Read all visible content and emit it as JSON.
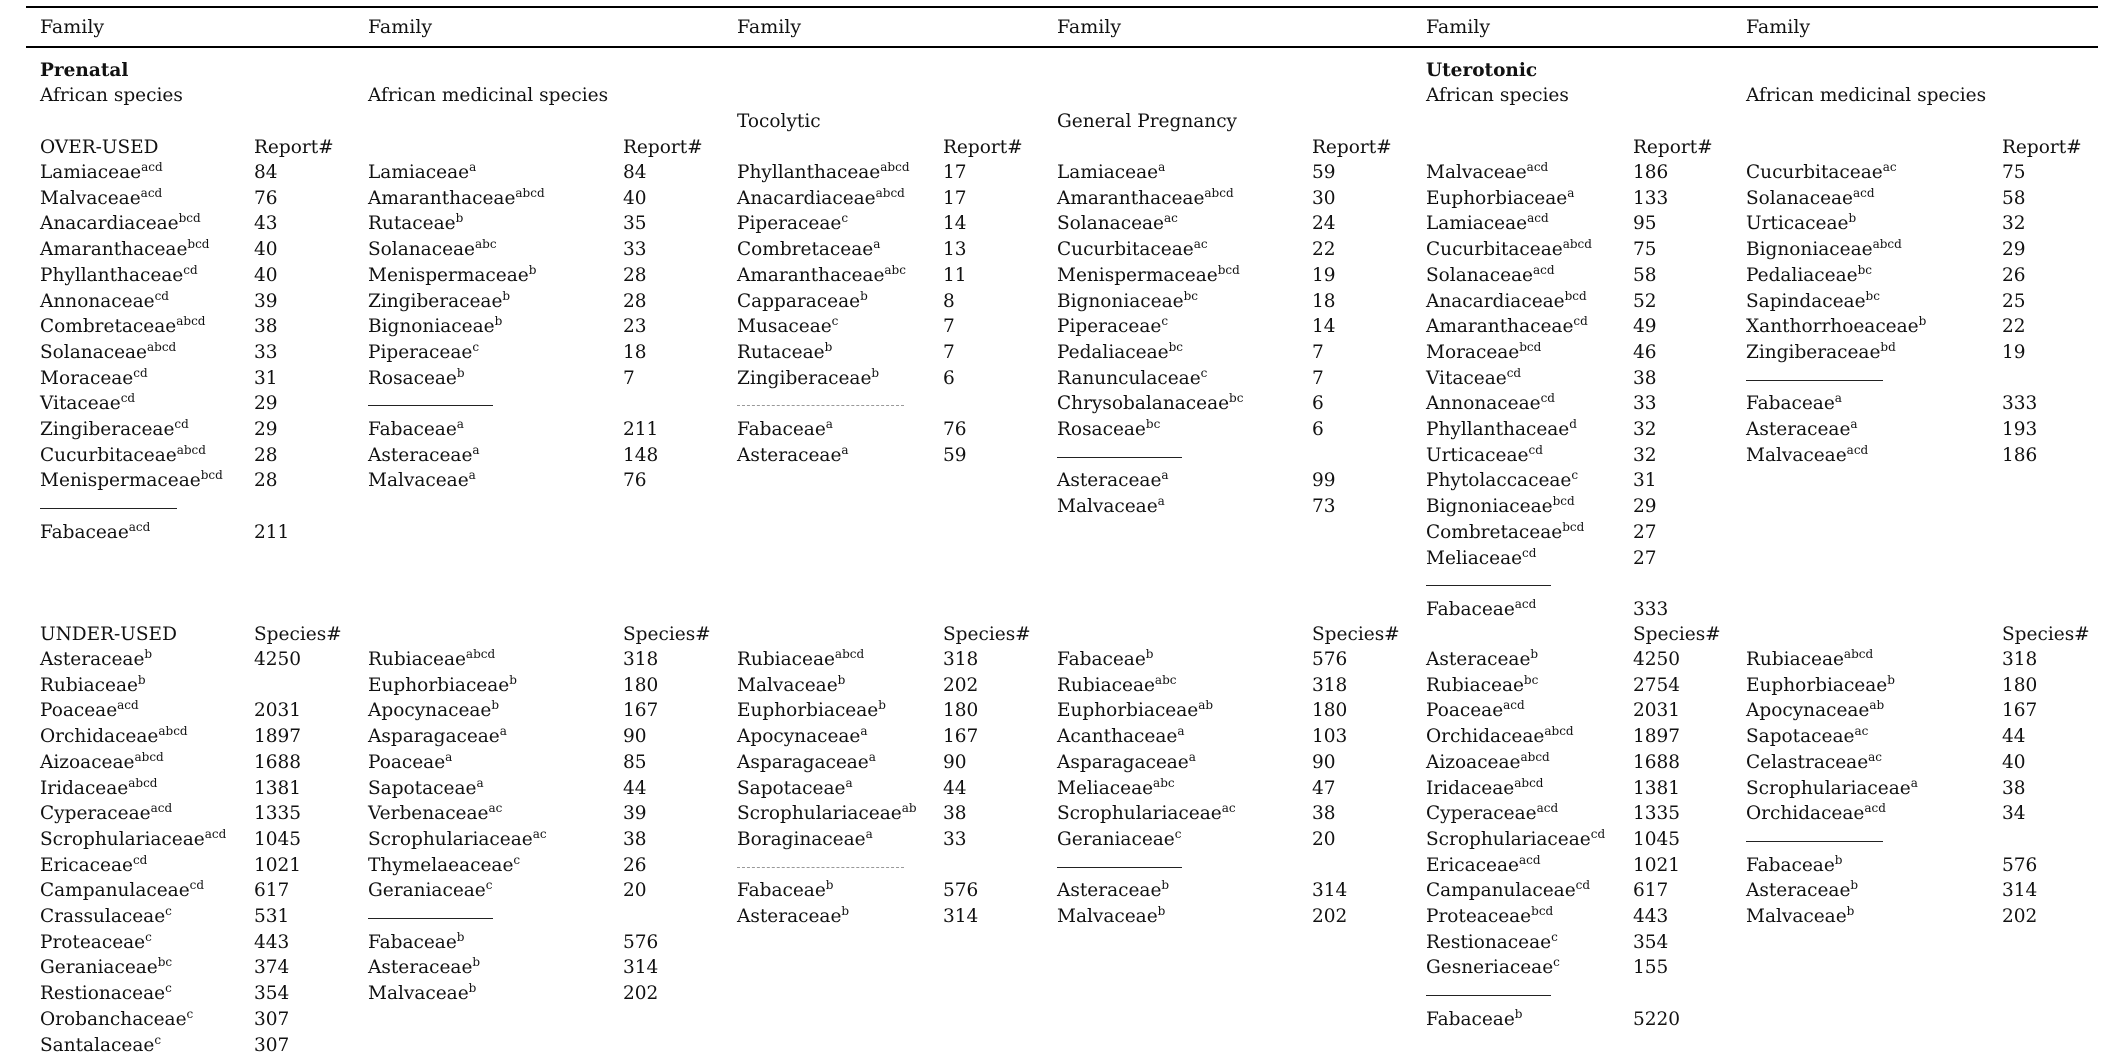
{
  "header": {
    "cols": [
      "Family",
      "Family",
      "Family",
      "Family",
      "Family",
      "Family"
    ]
  },
  "sections": {
    "prenatal": "Prenatal",
    "uterotonic": "Uterotonic"
  },
  "subheads": {
    "african_species": "African species",
    "african_medicinal": "African medicinal species",
    "tocolytic": "Tocolytic",
    "general_pregnancy": "General Pregnancy",
    "african_species_2": "African species",
    "african_medicinal_2": "African medicinal species"
  },
  "labels": {
    "over_used": "OVER-USED",
    "under_used": "UNDER-USED",
    "report": "Report#",
    "species": "Species#"
  },
  "groups": [
    {
      "id": "pa-over",
      "rows": [
        {
          "n": "Lamiaceae",
          "s": "acd",
          "v": "84"
        },
        {
          "n": "Malvaceae",
          "s": "acd",
          "v": "76"
        },
        {
          "n": "Anacardiaceae",
          "s": "bcd",
          "v": "43"
        },
        {
          "n": "Amaranthaceae",
          "s": "bcd",
          "v": "40"
        },
        {
          "n": "Phyllanthaceae",
          "s": "cd",
          "v": "40"
        },
        {
          "n": "Annonaceae",
          "s": "cd",
          "v": "39"
        },
        {
          "n": "Combretaceae",
          "s": "abcd",
          "v": "38"
        },
        {
          "n": "Solanaceae",
          "s": "abcd",
          "v": "33"
        },
        {
          "n": "Moraceae",
          "s": "cd",
          "v": "31"
        },
        {
          "n": "Vitaceae",
          "s": "cd",
          "v": "29"
        },
        {
          "n": "Zingiberaceae",
          "s": "cd",
          "v": "29"
        },
        {
          "n": "Cucurbitaceae",
          "s": "abcd",
          "v": "28"
        },
        {
          "n": "Menispermaceae",
          "s": "bcd",
          "v": "28"
        },
        {
          "n": "Fabaceae",
          "s": "acd",
          "v": "211"
        }
      ]
    },
    {
      "id": "pm-over",
      "rows": [
        {
          "n": "Lamiaceae",
          "s": "a",
          "v": "84"
        },
        {
          "n": "Amaranthaceae",
          "s": "abcd",
          "v": "40"
        },
        {
          "n": "Rutaceae",
          "s": "b",
          "v": "35"
        },
        {
          "n": "Solanaceae",
          "s": "abc",
          "v": "33"
        },
        {
          "n": "Menispermaceae",
          "s": "b",
          "v": "28"
        },
        {
          "n": "Zingiberaceae",
          "s": "b",
          "v": "28"
        },
        {
          "n": "Bignoniaceae",
          "s": "b",
          "v": "23"
        },
        {
          "n": "Piperaceae",
          "s": "c",
          "v": "18"
        },
        {
          "n": "Rosaceae",
          "s": "b",
          "v": "7"
        },
        {
          "n": "Fabaceae",
          "s": "a",
          "v": "211"
        },
        {
          "n": "Asteraceae",
          "s": "a",
          "v": "148"
        },
        {
          "n": "Malvaceae",
          "s": "a",
          "v": "76"
        }
      ]
    },
    {
      "id": "toc-over",
      "rows": [
        {
          "n": "Phyllanthaceae",
          "s": "abcd",
          "v": "17"
        },
        {
          "n": "Anacardiaceae",
          "s": "abcd",
          "v": "17"
        },
        {
          "n": "Piperaceae",
          "s": "c",
          "v": "14"
        },
        {
          "n": "Combretaceae",
          "s": "a",
          "v": "13"
        },
        {
          "n": "Amaranthaceae",
          "s": "abc",
          "v": "11"
        },
        {
          "n": "Capparaceae",
          "s": "b",
          "v": "8"
        },
        {
          "n": "Musaceae",
          "s": "c",
          "v": "7"
        },
        {
          "n": "Rutaceae",
          "s": "b",
          "v": "7"
        },
        {
          "n": "Zingiberaceae",
          "s": "b",
          "v": "6"
        },
        {
          "n": "Fabaceae",
          "s": "a",
          "v": "76"
        },
        {
          "n": "Asteraceae",
          "s": "a",
          "v": "59"
        }
      ]
    },
    {
      "id": "gp-over",
      "rows": [
        {
          "n": "Lamiaceae",
          "s": "a",
          "v": "59"
        },
        {
          "n": "Amaranthaceae",
          "s": "abcd",
          "v": "30"
        },
        {
          "n": "Solanaceae",
          "s": "ac",
          "v": "24"
        },
        {
          "n": "Cucurbitaceae",
          "s": "ac",
          "v": "22"
        },
        {
          "n": "Menispermaceae",
          "s": "bcd",
          "v": "19"
        },
        {
          "n": "Bignoniaceae",
          "s": "bc",
          "v": "18"
        },
        {
          "n": "Piperaceae",
          "s": "c",
          "v": "14"
        },
        {
          "n": "Pedaliaceae",
          "s": "bc",
          "v": "7"
        },
        {
          "n": "Ranunculaceae",
          "s": "c",
          "v": "7"
        },
        {
          "n": "Chrysobalanaceae",
          "s": "bc",
          "v": "6"
        },
        {
          "n": "Rosaceae",
          "s": "bc",
          "v": "6"
        },
        {
          "n": "Asteraceae",
          "s": "a",
          "v": "99"
        },
        {
          "n": "Malvaceae",
          "s": "a",
          "v": "73"
        }
      ]
    },
    {
      "id": "ua-over",
      "rows": [
        {
          "n": "Malvaceae",
          "s": "acd",
          "v": "186"
        },
        {
          "n": "Euphorbiaceae",
          "s": "a",
          "v": "133"
        },
        {
          "n": "Lamiaceae",
          "s": "acd",
          "v": "95"
        },
        {
          "n": "Cucurbitaceae",
          "s": "abcd",
          "v": "75"
        },
        {
          "n": "Solanaceae",
          "s": "acd",
          "v": "58"
        },
        {
          "n": "Anacardiaceae",
          "s": "bcd",
          "v": "52"
        },
        {
          "n": "Amaranthaceae",
          "s": "cd",
          "v": "49"
        },
        {
          "n": "Moraceae",
          "s": "bcd",
          "v": "46"
        },
        {
          "n": "Vitaceae",
          "s": "cd",
          "v": "38"
        },
        {
          "n": "Annonaceae",
          "s": "cd",
          "v": "33"
        },
        {
          "n": "Phyllanthaceae",
          "s": "d",
          "v": "32"
        },
        {
          "n": "Urticaceae",
          "s": "cd",
          "v": "32"
        },
        {
          "n": "Phytolaccaceae",
          "s": "c",
          "v": "31"
        },
        {
          "n": "Bignoniaceae",
          "s": "bcd",
          "v": "29"
        },
        {
          "n": "Combretaceae",
          "s": "bcd",
          "v": "27"
        },
        {
          "n": "Meliaceae",
          "s": "cd",
          "v": "27"
        },
        {
          "n": "Fabaceae",
          "s": "acd",
          "v": "333"
        }
      ]
    },
    {
      "id": "um-over",
      "rows": [
        {
          "n": "Cucurbitaceae",
          "s": "ac",
          "v": "75"
        },
        {
          "n": "Solanaceae",
          "s": "acd",
          "v": "58"
        },
        {
          "n": "Urticaceae",
          "s": "b",
          "v": "32"
        },
        {
          "n": "Bignoniaceae",
          "s": "abcd",
          "v": "29"
        },
        {
          "n": "Pedaliaceae",
          "s": "bc",
          "v": "26"
        },
        {
          "n": "Sapindaceae",
          "s": "bc",
          "v": "25"
        },
        {
          "n": "Xanthorrhoeaceae",
          "s": "b",
          "v": "22"
        },
        {
          "n": "Zingiberaceae",
          "s": "bd",
          "v": "19"
        },
        {
          "n": "Fabaceae",
          "s": "a",
          "v": "333"
        },
        {
          "n": "Asteraceae",
          "s": "a",
          "v": "193"
        },
        {
          "n": "Malvaceae",
          "s": "acd",
          "v": "186"
        }
      ]
    },
    {
      "id": "pa-under",
      "rows": [
        {
          "n": "Asteraceae",
          "s": "b",
          "v": "4250"
        },
        {
          "n": "Rubiaceae",
          "s": "b",
          "v": ""
        },
        {
          "n": "Poaceae",
          "s": "acd",
          "v": "2031"
        },
        {
          "n": "Orchidaceae",
          "s": "abcd",
          "v": "1897"
        },
        {
          "n": "Aizoaceae",
          "s": "abcd",
          "v": "1688"
        },
        {
          "n": "Iridaceae",
          "s": "abcd",
          "v": "1381"
        },
        {
          "n": "Cyperaceae",
          "s": "acd",
          "v": "1335"
        },
        {
          "n": "Scrophulariaceae",
          "s": "acd",
          "v": "1045"
        },
        {
          "n": "Ericaceae",
          "s": "cd",
          "v": "1021"
        },
        {
          "n": "Campanulaceae",
          "s": "cd",
          "v": "617"
        },
        {
          "n": "Crassulaceae",
          "s": "c",
          "v": "531"
        },
        {
          "n": "Proteaceae",
          "s": "c",
          "v": "443"
        },
        {
          "n": "Geraniaceae",
          "s": "bc",
          "v": "374"
        },
        {
          "n": "Restionaceae",
          "s": "c",
          "v": "354"
        },
        {
          "n": "Orobanchaceae",
          "s": "c",
          "v": "307"
        },
        {
          "n": "Santalaceae",
          "s": "c",
          "v": "307"
        }
      ]
    },
    {
      "id": "pm-under",
      "rows": [
        {
          "n": "Rubiaceae",
          "s": "abcd",
          "v": "318"
        },
        {
          "n": "Euphorbiaceae",
          "s": "b",
          "v": "180"
        },
        {
          "n": "Apocynaceae",
          "s": "b",
          "v": "167"
        },
        {
          "n": "Asparagaceae",
          "s": "a",
          "v": "90"
        },
        {
          "n": "Poaceae",
          "s": "a",
          "v": "85"
        },
        {
          "n": "Sapotaceae",
          "s": "a",
          "v": "44"
        },
        {
          "n": "Verbenaceae",
          "s": "ac",
          "v": "39"
        },
        {
          "n": "Scrophulariaceae",
          "s": "ac",
          "v": "38"
        },
        {
          "n": "Thymelaeaceae",
          "s": "c",
          "v": "26"
        },
        {
          "n": "Geraniaceae",
          "s": "c",
          "v": "20"
        },
        {
          "n": "Fabaceae",
          "s": "b",
          "v": "576"
        },
        {
          "n": "Asteraceae",
          "s": "b",
          "v": "314"
        },
        {
          "n": "Malvaceae",
          "s": "b",
          "v": "202"
        }
      ]
    },
    {
      "id": "toc-under",
      "rows": [
        {
          "n": "Rubiaceae",
          "s": "abcd",
          "v": "318"
        },
        {
          "n": "Malvaceae",
          "s": "b",
          "v": "202"
        },
        {
          "n": "Euphorbiaceae",
          "s": "b",
          "v": "180"
        },
        {
          "n": "Apocynaceae",
          "s": "a",
          "v": "167"
        },
        {
          "n": "Asparagaceae",
          "s": "a",
          "v": "90"
        },
        {
          "n": "Sapotaceae",
          "s": "a",
          "v": "44"
        },
        {
          "n": "Scrophulariaceae",
          "s": "ab",
          "v": "38"
        },
        {
          "n": "Boraginaceae",
          "s": "a",
          "v": "33"
        },
        {
          "n": "Fabaceae",
          "s": "b",
          "v": "576"
        },
        {
          "n": "Asteraceae",
          "s": "b",
          "v": "314"
        }
      ]
    },
    {
      "id": "gp-under",
      "rows": [
        {
          "n": "Fabaceae",
          "s": "b",
          "v": "576"
        },
        {
          "n": "Rubiaceae",
          "s": "abc",
          "v": "318"
        },
        {
          "n": "Euphorbiaceae",
          "s": "ab",
          "v": "180"
        },
        {
          "n": "Acanthaceae",
          "s": "a",
          "v": "103"
        },
        {
          "n": "Asparagaceae",
          "s": "a",
          "v": "90"
        },
        {
          "n": "Meliaceae",
          "s": "abc",
          "v": "47"
        },
        {
          "n": "Scrophulariaceae",
          "s": "ac",
          "v": "38"
        },
        {
          "n": "Geraniaceae",
          "s": "c",
          "v": "20"
        },
        {
          "n": "Asteraceae",
          "s": "b",
          "v": "314"
        },
        {
          "n": "Malvaceae",
          "s": "b",
          "v": "202"
        }
      ]
    },
    {
      "id": "ua-under",
      "rows": [
        {
          "n": "Asteraceae",
          "s": "b",
          "v": "4250"
        },
        {
          "n": "Rubiaceae",
          "s": "bc",
          "v": "2754"
        },
        {
          "n": "Poaceae",
          "s": "acd",
          "v": "2031"
        },
        {
          "n": "Orchidaceae",
          "s": "abcd",
          "v": "1897"
        },
        {
          "n": "Aizoaceae",
          "s": "abcd",
          "v": "1688"
        },
        {
          "n": "Iridaceae",
          "s": "abcd",
          "v": "1381"
        },
        {
          "n": "Cyperaceae",
          "s": "acd",
          "v": "1335"
        },
        {
          "n": "Scrophulariaceae",
          "s": "cd",
          "v": "1045"
        },
        {
          "n": "Ericaceae",
          "s": "acd",
          "v": "1021"
        },
        {
          "n": "Campanulaceae",
          "s": "cd",
          "v": "617"
        },
        {
          "n": "Proteaceae",
          "s": "bcd",
          "v": "443"
        },
        {
          "n": "Restionaceae",
          "s": "c",
          "v": "354"
        },
        {
          "n": "Gesneriaceae",
          "s": "c",
          "v": "155"
        },
        {
          "n": "Fabaceae",
          "s": "b",
          "v": "5220"
        }
      ]
    },
    {
      "id": "um-under",
      "rows": [
        {
          "n": "Rubiaceae",
          "s": "abcd",
          "v": "318"
        },
        {
          "n": "Euphorbiaceae",
          "s": "b",
          "v": "180"
        },
        {
          "n": "Apocynaceae",
          "s": "ab",
          "v": "167"
        },
        {
          "n": "Sapotaceae",
          "s": "ac",
          "v": "44"
        },
        {
          "n": "Celastraceae",
          "s": "ac",
          "v": "40"
        },
        {
          "n": "Scrophulariaceae",
          "s": "a",
          "v": "38"
        },
        {
          "n": "Orchidaceae",
          "s": "acd",
          "v": "34"
        },
        {
          "n": "Fabaceae",
          "s": "b",
          "v": "576"
        },
        {
          "n": "Asteraceae",
          "s": "b",
          "v": "314"
        },
        {
          "n": "Malvaceae",
          "s": "b",
          "v": "202"
        }
      ]
    }
  ]
}
